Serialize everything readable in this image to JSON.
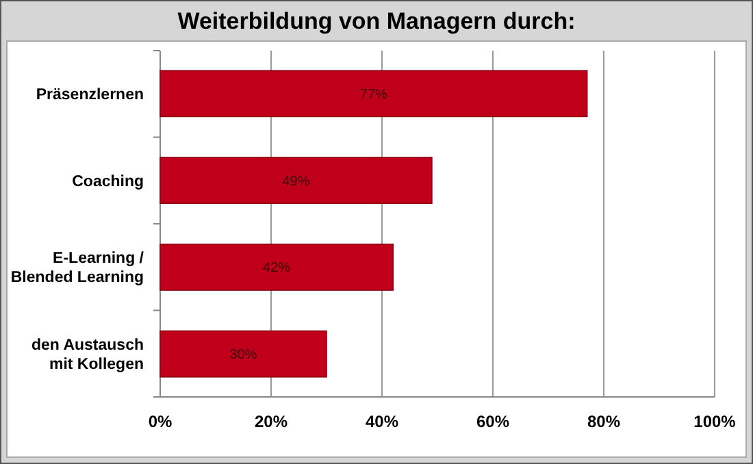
{
  "chart_data": {
    "type": "bar",
    "orientation": "horizontal",
    "title": "Weiterbildung von Managern durch:",
    "categories": [
      "Präsenzlernen",
      "Coaching",
      "E-Learning / Blended Learning",
      "den Austausch mit Kollegen"
    ],
    "values": [
      77,
      49,
      42,
      30
    ],
    "color": "#c0001a",
    "value_labels": [
      "77%",
      "49%",
      "42%",
      "30%"
    ],
    "xlim": [
      0,
      100
    ],
    "xticks": [
      {
        "value": 0,
        "label": "0%"
      },
      {
        "value": 20,
        "label": "20%"
      },
      {
        "value": 40,
        "label": "40%"
      },
      {
        "value": 60,
        "label": "60%"
      },
      {
        "value": 80,
        "label": "80%"
      },
      {
        "value": 100,
        "label": "100%"
      }
    ],
    "grid": "x"
  }
}
